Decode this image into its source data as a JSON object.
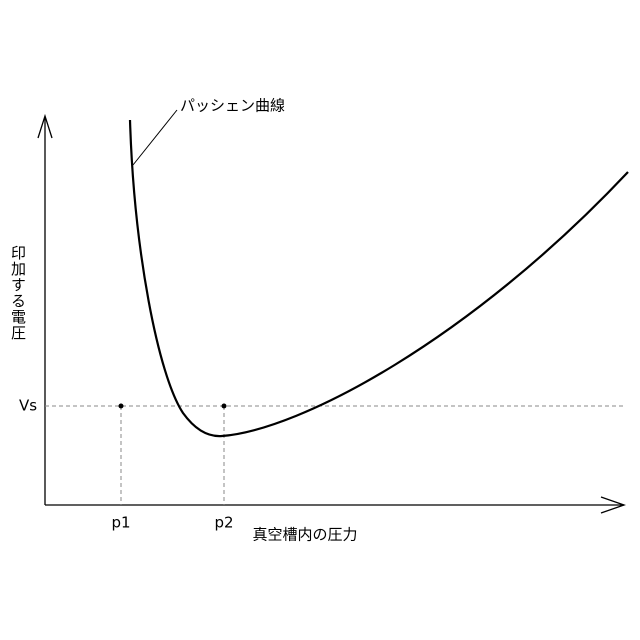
{
  "curve_label": "パッシェン曲線",
  "y_axis_label": "印加する電圧",
  "x_axis_label": "真空槽内の圧力",
  "threshold_label": "Vs",
  "pressure_labels": [
    "p1",
    "p2"
  ]
}
